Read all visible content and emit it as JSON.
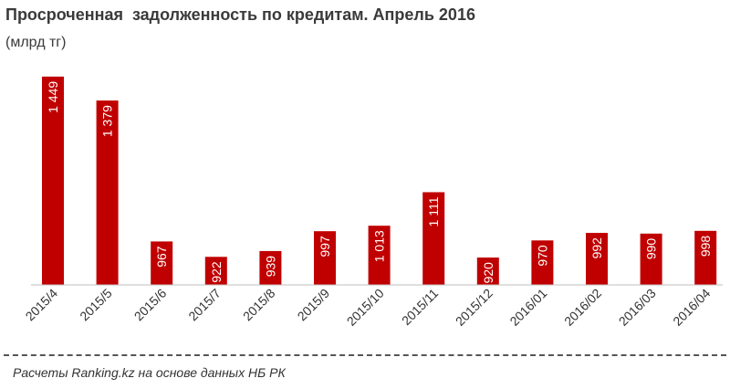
{
  "title": "Просроченная  задолженность по кредитам. Апрель 2016",
  "subtitle": "(млрд тг)",
  "source": "Расчеты Ranking.kz на основе данных НБ РК",
  "colors": {
    "bar": "#c00000",
    "label": "#ffffff",
    "axis": "#bfbfbf",
    "tick_text": "#333333"
  },
  "chart_data": {
    "type": "bar",
    "categories": [
      "2015/4",
      "2015/5",
      "2015/6",
      "2015/7",
      "2015/8",
      "2015/9",
      "2015/10",
      "2015/11",
      "2015/12",
      "2016/01",
      "2016/02",
      "2016/03",
      "2016/04"
    ],
    "values": [
      1449,
      1379,
      967,
      922,
      939,
      997,
      1013,
      1111,
      920,
      970,
      992,
      990,
      998
    ],
    "labels": [
      "1 449",
      "1 379",
      "967",
      "922",
      "939",
      "997",
      "1 013",
      "1 111",
      "920",
      "970",
      "992",
      "990",
      "998"
    ],
    "title": "Просроченная  задолженность по кредитам. Апрель 2016",
    "ylabel": "(млрд тг)",
    "xlabel": "",
    "ylim": [
      840,
      1470
    ],
    "grid": false,
    "legend": "none"
  }
}
